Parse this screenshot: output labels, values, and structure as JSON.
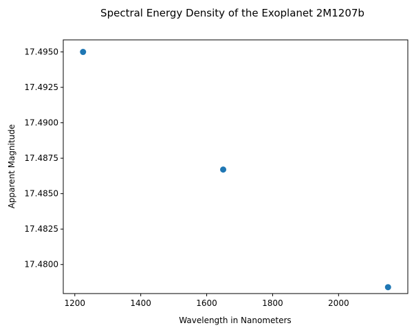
{
  "chart_data": {
    "type": "scatter",
    "title": "Spectral Energy Density of the Exoplanet 2M1207b",
    "xlabel": "Wavelength in Nanometers",
    "ylabel": "Apparent Magnitude",
    "x": [
      1225,
      1650,
      2150
    ],
    "y": [
      17.495,
      17.4867,
      17.4784
    ],
    "xlim": [
      1165,
      2210
    ],
    "ylim": [
      17.47795,
      17.49585
    ],
    "xticks": [
      1200,
      1400,
      1600,
      1800,
      2000
    ],
    "yticks": [
      17.48,
      17.4825,
      17.485,
      17.4875,
      17.49,
      17.4925,
      17.495
    ],
    "xtick_labels": [
      "1200",
      "1400",
      "1600",
      "1800",
      "2000"
    ],
    "ytick_labels": [
      "17.4800",
      "17.4825",
      "17.4850",
      "17.4875",
      "17.4900",
      "17.4925",
      "17.4950"
    ],
    "grid": false,
    "marker_color": "#1f77b4"
  }
}
